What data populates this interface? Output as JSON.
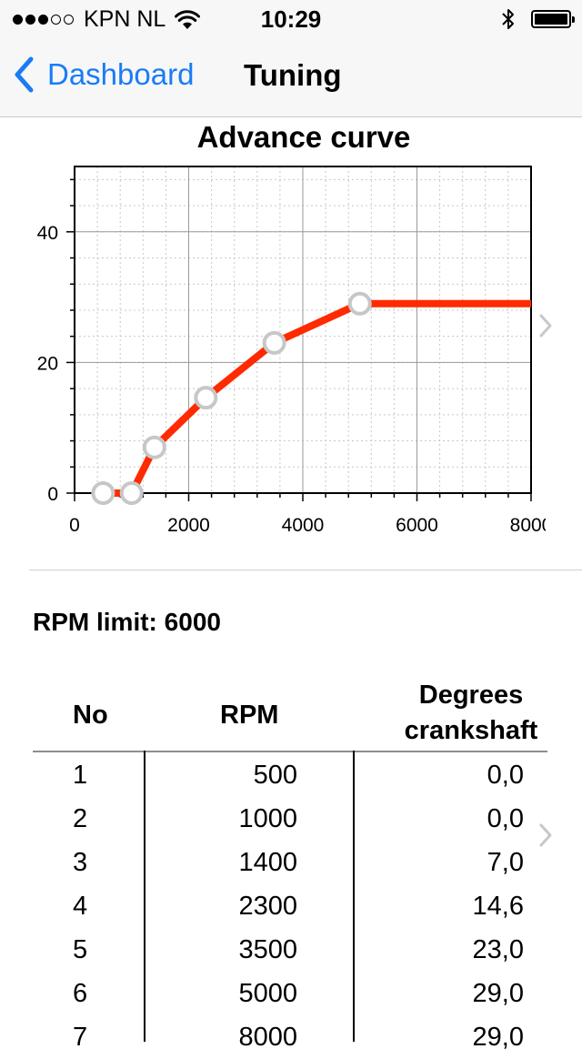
{
  "status_bar": {
    "carrier": "KPN NL",
    "time": "10:29",
    "signal_strength": 3,
    "signal_max": 5
  },
  "nav": {
    "back_label": "Dashboard",
    "title": "Tuning"
  },
  "chart_data": {
    "type": "line",
    "title": "Advance curve",
    "xlabel": "",
    "ylabel": "",
    "xlim": [
      0,
      8000
    ],
    "ylim": [
      0,
      50
    ],
    "x_ticks": [
      "0",
      "2000",
      "4000",
      "6000",
      "8000"
    ],
    "y_ticks": [
      "0",
      "20",
      "40"
    ],
    "grid": true,
    "line_color": "#ff2a00",
    "marker_color": "#c7c7c7",
    "points": [
      {
        "x": 500,
        "y": 0
      },
      {
        "x": 1000,
        "y": 0
      },
      {
        "x": 1400,
        "y": 7
      },
      {
        "x": 2300,
        "y": 14.6
      },
      {
        "x": 3500,
        "y": 23
      },
      {
        "x": 5000,
        "y": 29
      },
      {
        "x": 8000,
        "y": 29
      }
    ]
  },
  "rpm_limit": {
    "label": "RPM limit: ",
    "value": "6000"
  },
  "table": {
    "headers": {
      "no": "No",
      "rpm": "RPM",
      "degrees": "Degrees crankshaft"
    },
    "rows": [
      {
        "no": "1",
        "rpm": "500",
        "deg": "0,0"
      },
      {
        "no": "2",
        "rpm": "1000",
        "deg": "0,0"
      },
      {
        "no": "3",
        "rpm": "1400",
        "deg": "7,0"
      },
      {
        "no": "4",
        "rpm": "2300",
        "deg": "14,6"
      },
      {
        "no": "5",
        "rpm": "3500",
        "deg": "23,0"
      },
      {
        "no": "6",
        "rpm": "5000",
        "deg": "29,0"
      },
      {
        "no": "7",
        "rpm": "8000",
        "deg": "29,0"
      }
    ]
  },
  "colors": {
    "accent": "#1a7cf5",
    "bar_background": "#f7f7f7",
    "chevron": "#c7c7cc"
  }
}
